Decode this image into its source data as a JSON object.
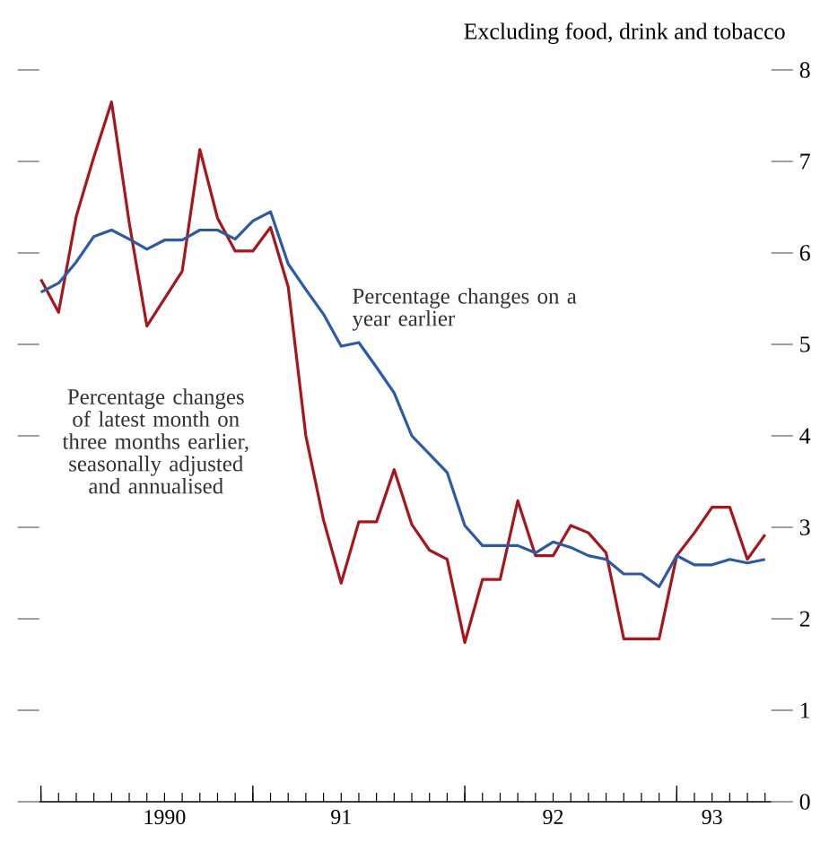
{
  "chart_data": {
    "type": "line",
    "title": "Excluding food, drink and tobacco",
    "categories": [
      null,
      null,
      null,
      null,
      null,
      null,
      null,
      "1990",
      null,
      null,
      null,
      null,
      null,
      null,
      null,
      null,
      null,
      "91",
      null,
      null,
      null,
      null,
      null,
      null,
      null,
      null,
      null,
      null,
      null,
      "92",
      null,
      null,
      null,
      null,
      null,
      null,
      null,
      null,
      "93",
      null,
      null,
      null
    ],
    "series": [
      {
        "name": "Percentage changes on a year earlier",
        "color": "#2b5aa6",
        "values": [
          5.57,
          5.67,
          5.9,
          6.18,
          6.25,
          6.15,
          6.04,
          6.14,
          6.14,
          6.25,
          6.25,
          6.15,
          6.35,
          6.45,
          5.88,
          5.6,
          5.33,
          4.98,
          5.02,
          4.75,
          4.47,
          4.0,
          3.8,
          3.6,
          3.02,
          2.8,
          2.8,
          2.8,
          2.72,
          2.84,
          2.78,
          2.69,
          2.65,
          2.49,
          2.49,
          2.35,
          2.69,
          2.59,
          2.59,
          2.65,
          2.61,
          2.65
        ]
      },
      {
        "name": "Percentage changes of latest month on three months earlier, seasonally adjusted and annualised",
        "color": "#a8161b",
        "values": [
          5.71,
          5.35,
          6.4,
          7.05,
          7.65,
          6.33,
          5.2,
          5.5,
          5.8,
          7.13,
          6.38,
          6.02,
          6.02,
          6.28,
          5.63,
          4.0,
          3.08,
          2.39,
          3.06,
          3.06,
          3.63,
          3.03,
          2.75,
          2.65,
          1.74,
          2.43,
          2.43,
          3.29,
          2.69,
          2.69,
          3.02,
          2.94,
          2.72,
          1.78,
          1.78,
          1.78,
          2.69,
          2.94,
          3.22,
          3.22,
          2.65,
          2.92
        ]
      }
    ],
    "ylim": [
      0,
      8
    ],
    "yticks": [
      0,
      1,
      2,
      3,
      4,
      5,
      6,
      7,
      8
    ],
    "grid": false,
    "marker": "none",
    "line_style": "solid"
  }
}
